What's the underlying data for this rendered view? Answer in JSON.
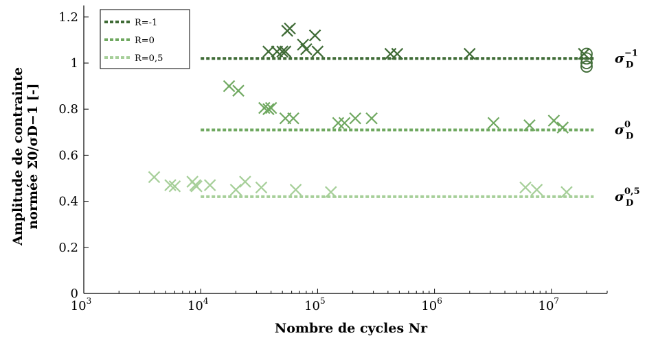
{
  "chart_data": {
    "type": "scatter",
    "title": "",
    "xlabel": "Nombre de cycles Nr",
    "ylabel_line1": "Amplitude de contrainte",
    "ylabel_line2": "normée Σ0/σD−1 [-]",
    "xscale": "log",
    "xlim": [
      1000,
      30000000
    ],
    "ylim": [
      0,
      1.25
    ],
    "grid": false,
    "legend_position": "top-left",
    "x_ticks": [
      {
        "base": "10",
        "exp": "3",
        "value": 1000
      },
      {
        "base": "10",
        "exp": "4",
        "value": 10000
      },
      {
        "base": "10",
        "exp": "5",
        "value": 100000
      },
      {
        "base": "10",
        "exp": "6",
        "value": 1000000
      },
      {
        "base": "10",
        "exp": "7",
        "value": 10000000
      }
    ],
    "y_ticks": [
      {
        "label": "0",
        "value": 0
      },
      {
        "label": "0.2",
        "value": 0.2
      },
      {
        "label": "0.4",
        "value": 0.4
      },
      {
        "label": "0.6",
        "value": 0.6
      },
      {
        "label": "0.8",
        "value": 0.8
      },
      {
        "label": "1",
        "value": 1.0
      },
      {
        "label": "1.2",
        "value": 1.2
      }
    ],
    "series": [
      {
        "name": "R=-1",
        "color": "#3f6b36",
        "limit_value": 1.02,
        "limit_x_range": [
          10000,
          23000000
        ],
        "limit_label_base": "σ",
        "limit_label_sub": "D",
        "limit_label_sup": "−1",
        "points": [
          {
            "x": 38000,
            "y": 1.05
          },
          {
            "x": 45000,
            "y": 1.05
          },
          {
            "x": 50000,
            "y": 1.05
          },
          {
            "x": 53000,
            "y": 1.05
          },
          {
            "x": 55000,
            "y": 1.14
          },
          {
            "x": 58000,
            "y": 1.15
          },
          {
            "x": 75000,
            "y": 1.08
          },
          {
            "x": 80000,
            "y": 1.06
          },
          {
            "x": 95000,
            "y": 1.12
          },
          {
            "x": 100000,
            "y": 1.05
          },
          {
            "x": 420000,
            "y": 1.04
          },
          {
            "x": 480000,
            "y": 1.04
          },
          {
            "x": 2000000,
            "y": 1.04
          },
          {
            "x": 19000000,
            "y": 1.04
          }
        ],
        "runouts": [
          {
            "x": 20000000,
            "y": 1.04
          },
          {
            "x": 20000000,
            "y": 1.02
          },
          {
            "x": 20000000,
            "y": 1.0
          },
          {
            "x": 20000000,
            "y": 0.985
          }
        ]
      },
      {
        "name": "R=0",
        "color": "#6fa860",
        "limit_value": 0.71,
        "limit_x_range": [
          10000,
          23000000
        ],
        "limit_label_base": "σ",
        "limit_label_sub": "D",
        "limit_label_sup": "0",
        "points": [
          {
            "x": 17500,
            "y": 0.9
          },
          {
            "x": 21000,
            "y": 0.88
          },
          {
            "x": 35000,
            "y": 0.805
          },
          {
            "x": 38000,
            "y": 0.8
          },
          {
            "x": 40000,
            "y": 0.805
          },
          {
            "x": 53000,
            "y": 0.76
          },
          {
            "x": 62000,
            "y": 0.76
          },
          {
            "x": 150000,
            "y": 0.74
          },
          {
            "x": 170000,
            "y": 0.74
          },
          {
            "x": 210000,
            "y": 0.76
          },
          {
            "x": 290000,
            "y": 0.76
          },
          {
            "x": 3200000,
            "y": 0.74
          },
          {
            "x": 6500000,
            "y": 0.73
          },
          {
            "x": 10500000,
            "y": 0.75
          },
          {
            "x": 12500000,
            "y": 0.72
          }
        ],
        "runouts": []
      },
      {
        "name": "R=0,5",
        "color": "#a6cf99",
        "limit_value": 0.42,
        "limit_x_range": [
          10000,
          23000000
        ],
        "limit_label_base": "σ",
        "limit_label_sub": "D",
        "limit_label_sup": "0,5",
        "points": [
          {
            "x": 4000,
            "y": 0.505
          },
          {
            "x": 5500,
            "y": 0.47
          },
          {
            "x": 6000,
            "y": 0.465
          },
          {
            "x": 8500,
            "y": 0.485
          },
          {
            "x": 9000,
            "y": 0.47
          },
          {
            "x": 9200,
            "y": 0.465
          },
          {
            "x": 12000,
            "y": 0.47
          },
          {
            "x": 20000,
            "y": 0.45
          },
          {
            "x": 24000,
            "y": 0.485
          },
          {
            "x": 33000,
            "y": 0.46
          },
          {
            "x": 65000,
            "y": 0.45
          },
          {
            "x": 130000,
            "y": 0.44
          },
          {
            "x": 6000000,
            "y": 0.46
          },
          {
            "x": 7500000,
            "y": 0.45
          },
          {
            "x": 13500000,
            "y": 0.44
          }
        ],
        "runouts": []
      }
    ]
  }
}
